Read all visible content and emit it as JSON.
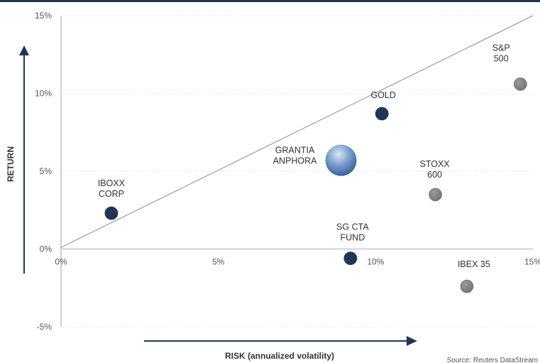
{
  "chart_data": {
    "type": "scatter",
    "xlabel": "RISK (annualized volatility)",
    "ylabel": "RETURN",
    "xlim": [
      0,
      15
    ],
    "ylim": [
      -5,
      15
    ],
    "x_ticks": [
      "0%",
      "5%",
      "10%",
      "15%"
    ],
    "y_ticks": [
      "-5%",
      "0%",
      "5%",
      "10%",
      "15%"
    ],
    "grid": "horizontal",
    "trend_line": {
      "x": [
        0,
        15
      ],
      "y": [
        0.1,
        15
      ]
    },
    "points": [
      {
        "label": [
          "IBOXX",
          "CORP"
        ],
        "x": 1.6,
        "y": 2.3,
        "color": "#1f3658",
        "highlight": false
      },
      {
        "label": [
          "GRANTIA",
          "ANPHORA"
        ],
        "x": 8.9,
        "y": 5.7,
        "color": "#4a72ad",
        "highlight": true
      },
      {
        "label": [
          "GOLD"
        ],
        "x": 10.2,
        "y": 8.7,
        "color": "#1f3658",
        "highlight": false
      },
      {
        "label": [
          "SG CTA",
          "FUND"
        ],
        "x": 9.2,
        "y": -0.6,
        "color": "#1f3658",
        "highlight": false
      },
      {
        "label": [
          "S&P",
          "500"
        ],
        "x": 14.6,
        "y": 10.6,
        "color": "#7f7f7f",
        "highlight": false
      },
      {
        "label": [
          "STOXX",
          "600"
        ],
        "x": 11.9,
        "y": 3.5,
        "color": "#7f7f7f",
        "highlight": false
      },
      {
        "label": [
          "IBEX 35"
        ],
        "x": 12.9,
        "y": -2.4,
        "color": "#7f7f7f",
        "highlight": false
      }
    ]
  },
  "source": "Source: Reuters DataStream"
}
